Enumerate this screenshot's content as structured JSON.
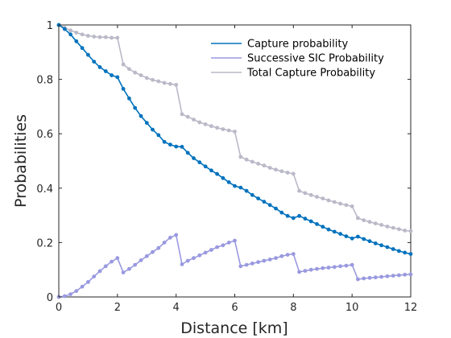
{
  "chart_data": {
    "type": "line",
    "title": "",
    "xlabel": "Distance [km]",
    "ylabel": "Probabilities",
    "xlim": [
      0,
      12
    ],
    "ylim": [
      0,
      1
    ],
    "xticks": [
      "0",
      "2",
      "4",
      "6",
      "8",
      "10",
      "12"
    ],
    "yticks": [
      "0",
      "0.2",
      "0.4",
      "0.6",
      "0.8",
      "1"
    ],
    "grid": false,
    "legend_position": "top-right",
    "series": [
      {
        "name": "Capture probability",
        "color": "#0072bd",
        "x": [
          0,
          0.2,
          0.4,
          0.6,
          0.8,
          1.0,
          1.2,
          1.4,
          1.6,
          1.8,
          2.0,
          2.2,
          2.4,
          2.6,
          2.8,
          3.0,
          3.2,
          3.4,
          3.6,
          3.8,
          4.0,
          4.2,
          4.4,
          4.6,
          4.8,
          5.0,
          5.2,
          5.4,
          5.6,
          5.8,
          6.0,
          6.2,
          6.4,
          6.6,
          6.8,
          7.0,
          7.2,
          7.4,
          7.6,
          7.8,
          8.0,
          8.2,
          8.4,
          8.6,
          8.8,
          9.0,
          9.2,
          9.4,
          9.6,
          9.8,
          10.0,
          10.2,
          10.4,
          10.6,
          10.8,
          11.0,
          11.2,
          11.4,
          11.6,
          11.8,
          12.0
        ],
        "y": [
          1.0,
          0.985,
          0.965,
          0.94,
          0.915,
          0.89,
          0.865,
          0.845,
          0.83,
          0.815,
          0.808,
          0.765,
          0.73,
          0.695,
          0.665,
          0.64,
          0.615,
          0.595,
          0.57,
          0.56,
          0.553,
          0.552,
          0.53,
          0.51,
          0.495,
          0.48,
          0.465,
          0.452,
          0.437,
          0.422,
          0.408,
          0.402,
          0.39,
          0.375,
          0.362,
          0.35,
          0.338,
          0.325,
          0.31,
          0.298,
          0.29,
          0.298,
          0.288,
          0.278,
          0.268,
          0.258,
          0.248,
          0.24,
          0.232,
          0.223,
          0.215,
          0.222,
          0.213,
          0.205,
          0.197,
          0.19,
          0.183,
          0.176,
          0.169,
          0.163,
          0.158
        ]
      },
      {
        "name": "Successive SIC Probability",
        "color": "#9999e0",
        "x": [
          0,
          0.2,
          0.4,
          0.6,
          0.8,
          1.0,
          1.2,
          1.4,
          1.6,
          1.8,
          2.0,
          2.2,
          2.4,
          2.6,
          2.8,
          3.0,
          3.2,
          3.4,
          3.6,
          3.8,
          4.0,
          4.2,
          4.4,
          4.6,
          4.8,
          5.0,
          5.2,
          5.4,
          5.6,
          5.8,
          6.0,
          6.2,
          6.4,
          6.6,
          6.8,
          7.0,
          7.2,
          7.4,
          7.6,
          7.8,
          8.0,
          8.2,
          8.4,
          8.6,
          8.8,
          9.0,
          9.2,
          9.4,
          9.6,
          9.8,
          10.0,
          10.2,
          10.4,
          10.6,
          10.8,
          11.0,
          11.2,
          11.4,
          11.6,
          11.8,
          12.0
        ],
        "y": [
          0.0,
          0.003,
          0.01,
          0.022,
          0.038,
          0.055,
          0.075,
          0.095,
          0.113,
          0.13,
          0.143,
          0.09,
          0.103,
          0.118,
          0.135,
          0.15,
          0.165,
          0.18,
          0.2,
          0.218,
          0.228,
          0.12,
          0.133,
          0.143,
          0.153,
          0.163,
          0.173,
          0.183,
          0.19,
          0.2,
          0.207,
          0.113,
          0.118,
          0.123,
          0.128,
          0.133,
          0.138,
          0.143,
          0.15,
          0.155,
          0.158,
          0.092,
          0.096,
          0.1,
          0.103,
          0.106,
          0.108,
          0.11,
          0.113,
          0.115,
          0.118,
          0.065,
          0.068,
          0.07,
          0.072,
          0.074,
          0.076,
          0.078,
          0.08,
          0.082,
          0.083
        ]
      },
      {
        "name": "Total Capture Probability",
        "color": "#b9b9c8",
        "x": [
          0,
          0.2,
          0.4,
          0.6,
          0.8,
          1.0,
          1.2,
          1.4,
          1.6,
          1.8,
          2.0,
          2.2,
          2.4,
          2.6,
          2.8,
          3.0,
          3.2,
          3.4,
          3.6,
          3.8,
          4.0,
          4.2,
          4.4,
          4.6,
          4.8,
          5.0,
          5.2,
          5.4,
          5.6,
          5.8,
          6.0,
          6.2,
          6.4,
          6.6,
          6.8,
          7.0,
          7.2,
          7.4,
          7.6,
          7.8,
          8.0,
          8.2,
          8.4,
          8.6,
          8.8,
          9.0,
          9.2,
          9.4,
          9.6,
          9.8,
          10.0,
          10.2,
          10.4,
          10.6,
          10.8,
          11.0,
          11.2,
          11.4,
          11.6,
          11.8,
          12.0
        ],
        "y": [
          1.0,
          0.99,
          0.98,
          0.972,
          0.965,
          0.96,
          0.957,
          0.955,
          0.955,
          0.953,
          0.953,
          0.855,
          0.838,
          0.825,
          0.815,
          0.805,
          0.798,
          0.793,
          0.787,
          0.783,
          0.78,
          0.672,
          0.662,
          0.652,
          0.642,
          0.635,
          0.628,
          0.622,
          0.617,
          0.612,
          0.608,
          0.515,
          0.505,
          0.497,
          0.49,
          0.483,
          0.475,
          0.468,
          0.462,
          0.457,
          0.453,
          0.39,
          0.382,
          0.375,
          0.368,
          0.362,
          0.355,
          0.349,
          0.343,
          0.338,
          0.333,
          0.29,
          0.282,
          0.276,
          0.27,
          0.265,
          0.259,
          0.254,
          0.249,
          0.244,
          0.242
        ]
      }
    ]
  }
}
